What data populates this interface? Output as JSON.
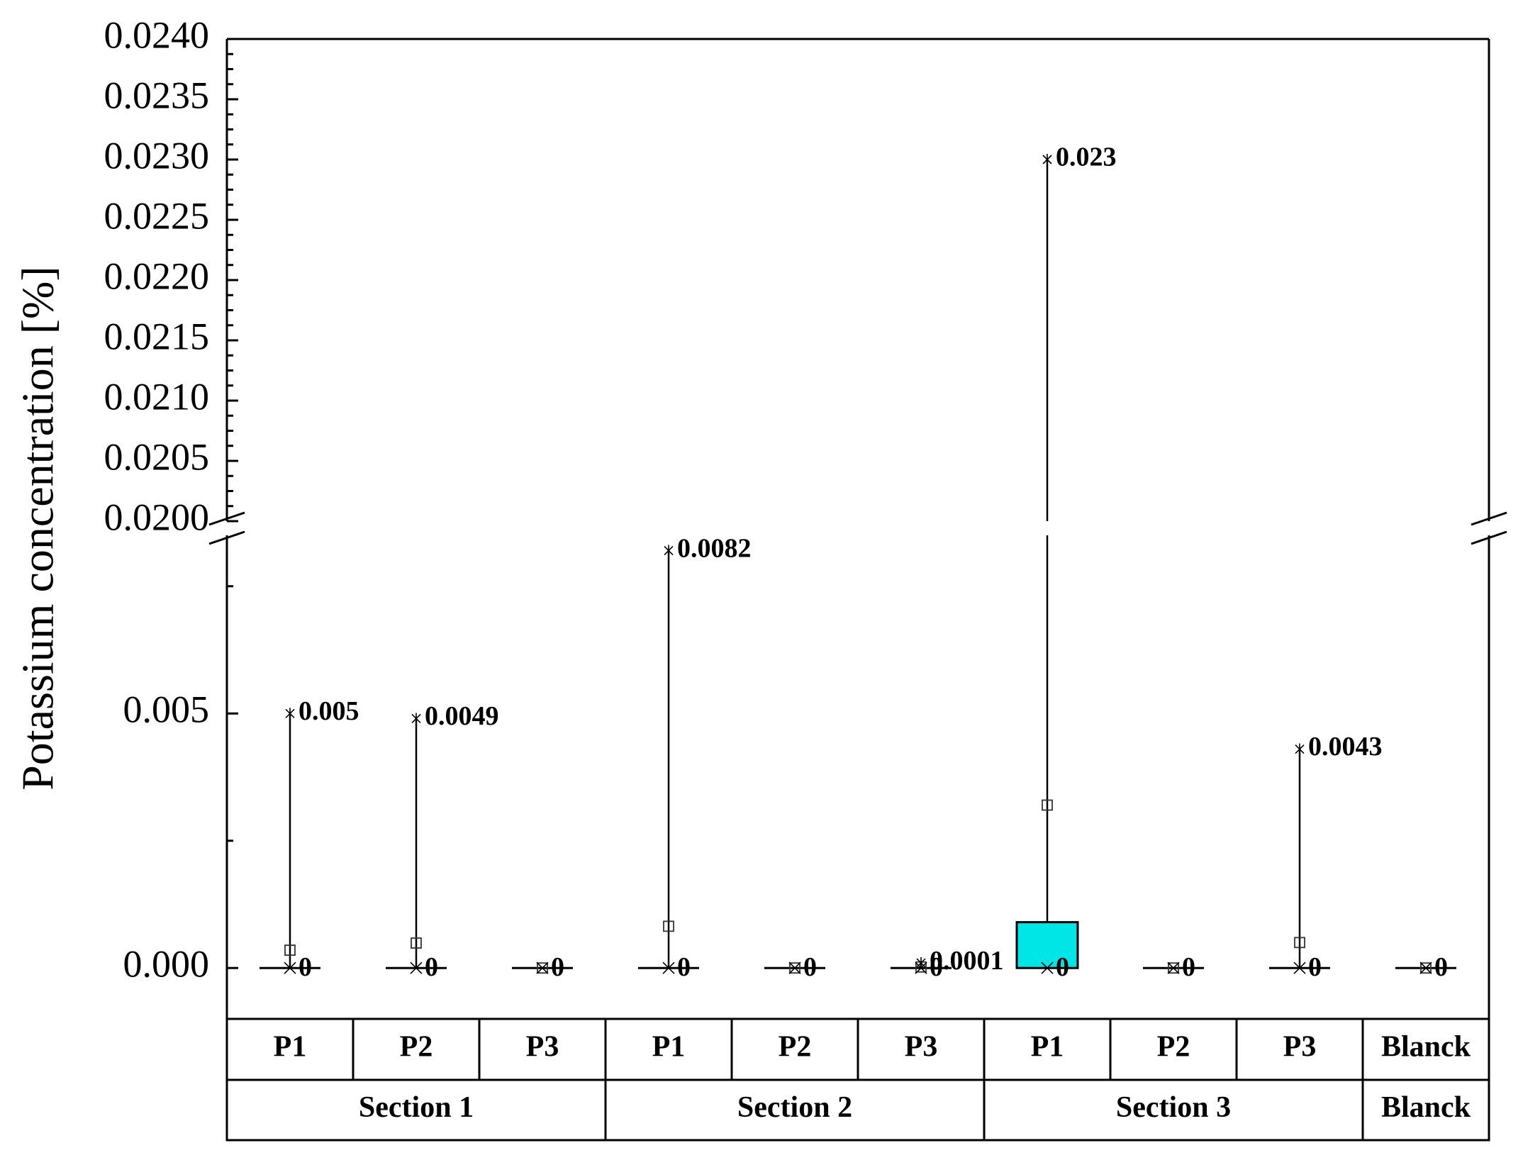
{
  "chart_data": {
    "type": "box",
    "ylabel": "Potassium concentration [%]",
    "y_axis": {
      "broken": true,
      "lower_segment": {
        "range": [
          -0.001,
          0.0085
        ],
        "ticks": [
          "0.000",
          "0.005"
        ]
      },
      "upper_segment": {
        "range": [
          0.02,
          0.024
        ],
        "ticks": [
          "0.0200",
          "0.0205",
          "0.0210",
          "0.0215",
          "0.0220",
          "0.0225",
          "0.0230",
          "0.0235",
          "0.0240"
        ]
      }
    },
    "groups": [
      {
        "name": "Section 1",
        "categories": [
          "P1",
          "P2",
          "P3"
        ]
      },
      {
        "name": "Section 2",
        "categories": [
          "P1",
          "P2",
          "P3"
        ]
      },
      {
        "name": "Section 3",
        "categories": [
          "P1",
          "P2",
          "P3"
        ]
      },
      {
        "name": "Blanck",
        "categories": [
          "Blanck"
        ]
      }
    ],
    "boxes": [
      {
        "group": "Section 1",
        "category": "P1",
        "min": 0,
        "max": 0.005,
        "q1": 0,
        "q3": 0,
        "mean": 0.00035,
        "max_label": "0.005",
        "min_label": "0"
      },
      {
        "group": "Section 1",
        "category": "P2",
        "min": 0,
        "max": 0.0049,
        "q1": 0,
        "q3": 0,
        "mean": 0.00049,
        "max_label": "0.0049",
        "min_label": "0"
      },
      {
        "group": "Section 1",
        "category": "P3",
        "min": 0,
        "max": 0,
        "q1": 0,
        "q3": 0,
        "mean": 0,
        "max_label": "",
        "min_label": "0"
      },
      {
        "group": "Section 2",
        "category": "P1",
        "min": 0,
        "max": 0.0082,
        "q1": 0,
        "q3": 0,
        "mean": 0.00082,
        "max_label": "0.0082",
        "min_label": "0"
      },
      {
        "group": "Section 2",
        "category": "P2",
        "min": 0,
        "max": 0,
        "q1": 0,
        "q3": 0,
        "mean": 0,
        "max_label": "",
        "min_label": "0"
      },
      {
        "group": "Section 2",
        "category": "P3",
        "min": 0,
        "max": 0.0001,
        "q1": 0,
        "q3": 0,
        "mean": 2e-05,
        "max_label": "0.0001",
        "min_label": "0"
      },
      {
        "group": "Section 3",
        "category": "P1",
        "min": 0,
        "max": 0.023,
        "q1": 0,
        "q3": 0.0009,
        "mean": 0.0032,
        "max_label": "0.023",
        "min_label": "0"
      },
      {
        "group": "Section 3",
        "category": "P2",
        "min": 0,
        "max": 0,
        "q1": 0,
        "q3": 0,
        "mean": 0,
        "max_label": "",
        "min_label": "0"
      },
      {
        "group": "Section 3",
        "category": "P3",
        "min": 0,
        "max": 0.0043,
        "q1": 0,
        "q3": 0,
        "mean": 0.0005,
        "max_label": "0.0043",
        "min_label": "0"
      },
      {
        "group": "Blanck",
        "category": "Blanck",
        "min": 0,
        "max": 0,
        "q1": 0,
        "q3": 0,
        "mean": 0,
        "max_label": "",
        "min_label": "0"
      }
    ],
    "box_color": "#00e5e5",
    "grid": false
  }
}
